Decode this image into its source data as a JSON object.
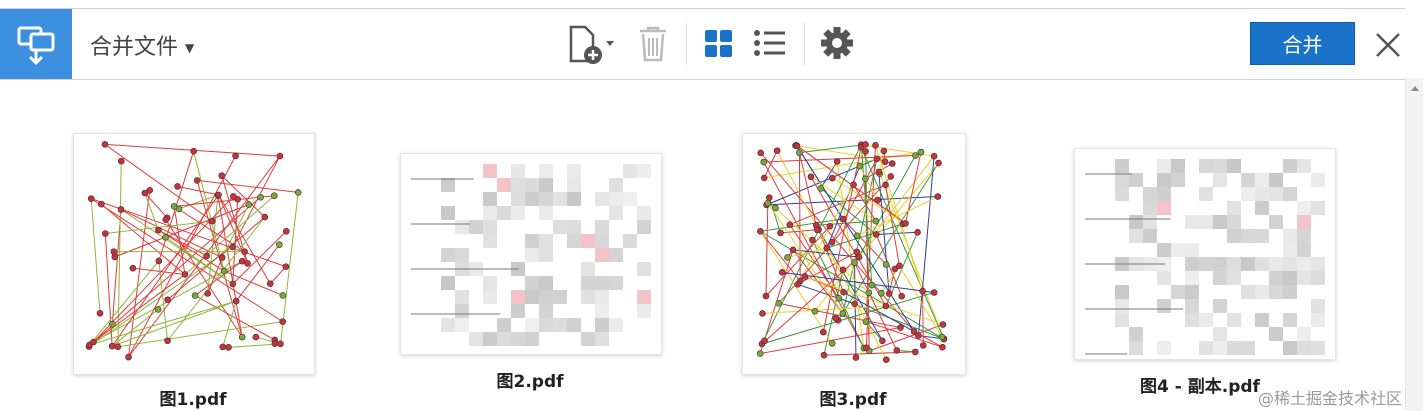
{
  "toolbar": {
    "title": "合并文件",
    "merge_button": "合并"
  },
  "files": [
    {
      "name": "图1.pdf"
    },
    {
      "name": "图2.pdf"
    },
    {
      "name": "图3.pdf"
    },
    {
      "name": "图4 - 副本.pdf"
    }
  ],
  "watermark": "@稀土掘金技术社区"
}
